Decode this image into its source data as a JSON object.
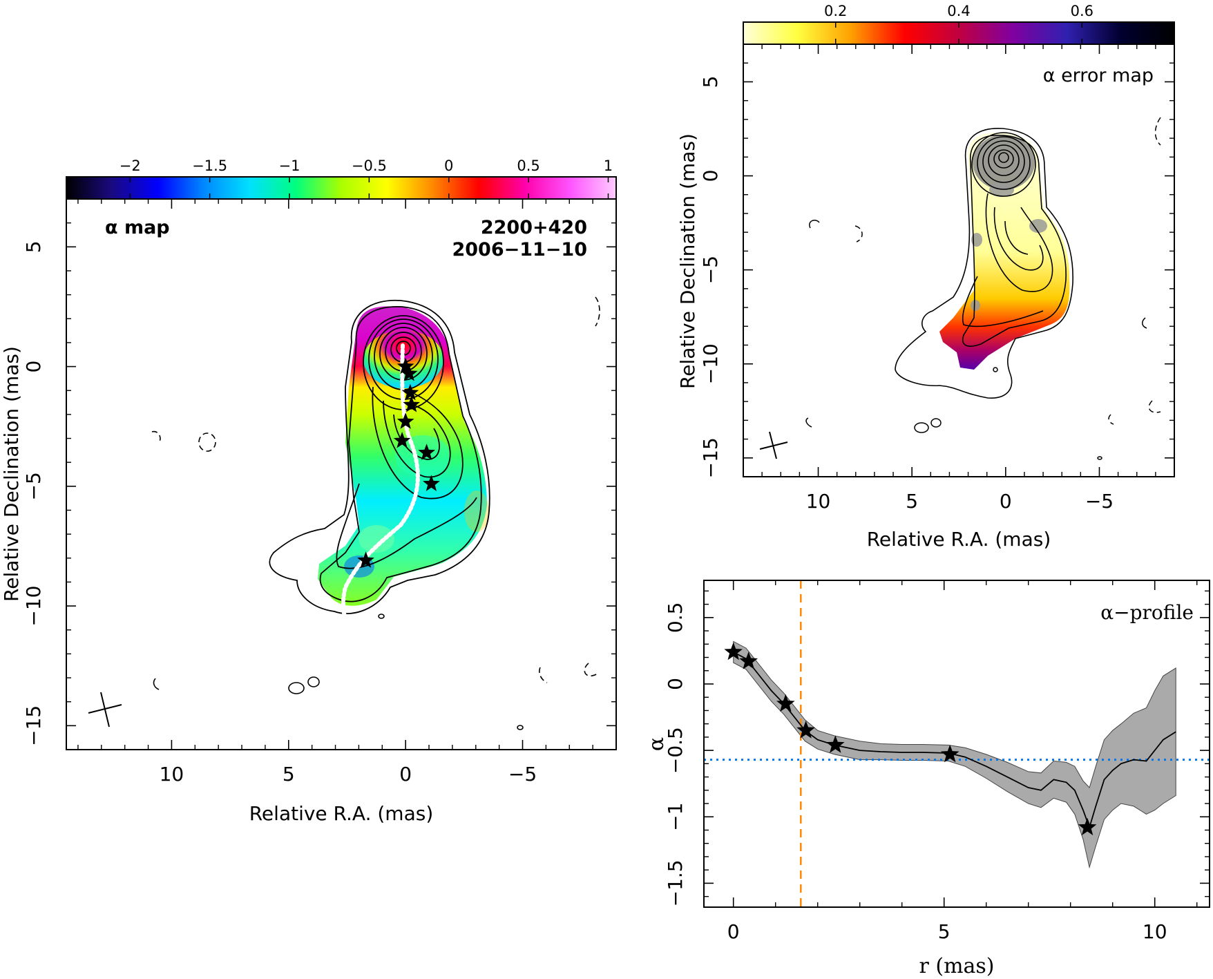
{
  "chart_data": [
    {
      "type": "heatmap",
      "panel": "alpha-map",
      "label": "α map",
      "source": "2200+420",
      "date": "2006−11−10",
      "xlabel": "Relative R.A. (mas)",
      "ylabel": "Relative Declination (mas)",
      "xlim": [
        14.5,
        -9
      ],
      "ylim": [
        -16,
        7
      ],
      "xticks": [
        10,
        5,
        0,
        -5
      ],
      "xtick_labels": [
        "10",
        "5",
        "0",
        "−5"
      ],
      "yticks": [
        5,
        0,
        -5,
        -10,
        -15
      ],
      "ytick_labels": [
        "5",
        "0",
        "−5",
        "−10",
        "−15"
      ],
      "colorbar": {
        "range": [
          -2.4,
          1.05
        ],
        "ticks": [
          -2,
          -1.5,
          -1,
          -0.5,
          0,
          0.5,
          1
        ],
        "tick_labels": [
          "−2",
          "−1.5",
          "−1",
          "−0.5",
          "0",
          "0.5",
          "1"
        ],
        "colormap": [
          "#000000",
          "#1a0a80",
          "#0000ff",
          "#0088ff",
          "#00e0ff",
          "#00ff80",
          "#aaff00",
          "#ffff00",
          "#ff8800",
          "#ff0000",
          "#ff00aa",
          "#ff55ff",
          "#ffccff"
        ]
      },
      "ridge_stars": [
        [
          0,
          0
        ],
        [
          -0.15,
          -0.3
        ],
        [
          -0.2,
          -1.1
        ],
        [
          -0.25,
          -1.6
        ],
        [
          0,
          -2.3
        ],
        [
          0.15,
          -3.1
        ],
        [
          -0.9,
          -3.6
        ],
        [
          -1.1,
          -4.9
        ],
        [
          1.7,
          -8.1
        ]
      ]
    },
    {
      "type": "heatmap",
      "panel": "alpha-error-map",
      "label": "α error map",
      "xlabel": "Relative R.A. (mas)",
      "ylabel": "Relative Declination (mas)",
      "xlim": [
        14,
        -9
      ],
      "ylim": [
        -16,
        7
      ],
      "xticks": [
        10,
        5,
        0,
        -5
      ],
      "xtick_labels": [
        "10",
        "5",
        "0",
        "−5"
      ],
      "yticks": [
        5,
        0,
        -5,
        -10,
        -15
      ],
      "ytick_labels": [
        "5",
        "0",
        "−5",
        "−10",
        "−15"
      ],
      "colorbar": {
        "range": [
          0.05,
          0.75
        ],
        "ticks": [
          0.2,
          0.4,
          0.6
        ],
        "tick_labels": [
          "0.2",
          "0.4",
          "0.6"
        ],
        "colormap": [
          "#ffffd8",
          "#ffff40",
          "#ffa000",
          "#ff0000",
          "#c00040",
          "#8000a0",
          "#3020b0",
          "#000030",
          "#000000"
        ]
      }
    },
    {
      "type": "line",
      "panel": "alpha-profile",
      "label": "α−profile",
      "xlabel": "r (mas)",
      "ylabel": "α",
      "xlim": [
        -0.7,
        11.3
      ],
      "ylim": [
        -1.68,
        0.78
      ],
      "xticks": [
        0,
        5,
        10
      ],
      "xtick_labels": [
        "0",
        "5",
        "10"
      ],
      "yticks": [
        0.5,
        0,
        -0.5,
        -1,
        -1.5
      ],
      "ytick_labels": [
        "0.5",
        "0",
        "−0.5",
        "−1",
        "−1.5"
      ],
      "series": [
        {
          "x": [
            0,
            0.3,
            0.6,
            0.9,
            1.2,
            1.5,
            1.7,
            2.0,
            2.4,
            3.0,
            3.5,
            4.0,
            4.5,
            5.1,
            5.5,
            6.0,
            6.5,
            7.0,
            7.3,
            7.6,
            7.9,
            8.1,
            8.3,
            8.45,
            8.6,
            8.8,
            9.0,
            9.2,
            9.5,
            9.8,
            10.0,
            10.2,
            10.5
          ],
          "y": [
            0.24,
            0.19,
            0.07,
            -0.05,
            -0.15,
            -0.27,
            -0.35,
            -0.42,
            -0.46,
            -0.5,
            -0.51,
            -0.515,
            -0.515,
            -0.52,
            -0.55,
            -0.62,
            -0.7,
            -0.78,
            -0.8,
            -0.72,
            -0.74,
            -0.8,
            -0.95,
            -1.08,
            -0.92,
            -0.72,
            -0.65,
            -0.6,
            -0.57,
            -0.58,
            -0.5,
            -0.42,
            -0.36
          ],
          "err": [
            0.08,
            0.08,
            0.08,
            0.08,
            0.08,
            0.08,
            0.08,
            0.07,
            0.07,
            0.07,
            0.06,
            0.06,
            0.06,
            0.06,
            0.07,
            0.09,
            0.11,
            0.12,
            0.13,
            0.14,
            0.15,
            0.18,
            0.22,
            0.3,
            0.3,
            0.3,
            0.3,
            0.3,
            0.35,
            0.4,
            0.45,
            0.48,
            0.48
          ]
        }
      ],
      "stars": [
        [
          0,
          0.24
        ],
        [
          0.36,
          0.17
        ],
        [
          1.24,
          -0.15
        ],
        [
          1.72,
          -0.35
        ],
        [
          2.42,
          -0.46
        ],
        [
          5.14,
          -0.53
        ],
        [
          8.4,
          -1.08
        ]
      ],
      "vertical_line_x": 1.6,
      "horizontal_line_y": -0.57,
      "colors": {
        "band": "#aaaaaa",
        "vline": "#ff8800",
        "hline": "#0077ee"
      }
    }
  ]
}
